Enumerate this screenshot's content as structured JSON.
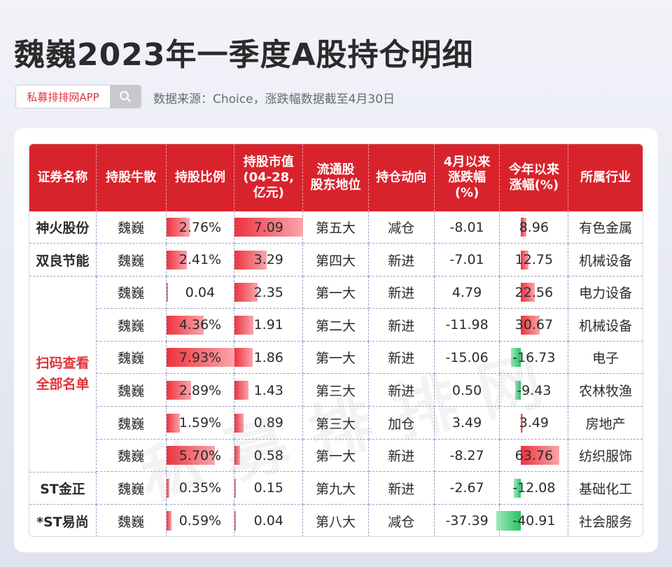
{
  "title": "魏巍2023年一季度A股持仓明细",
  "search": {
    "label": "私募排排网APP"
  },
  "source": "数据来源：Choice，涨跌幅数据截至4月30日",
  "watermark": "私募排排网",
  "headers": [
    "证券名称",
    "持股牛散",
    "持股比例",
    "持股市值\n(04-28,\n亿元)",
    "流通股\n股东地位",
    "持仓动向",
    "4月以来\n涨跌幅\n(%)",
    "今年以来\n涨幅(%)",
    "所属行业"
  ],
  "merged_label": "扫码查看\n全部名单",
  "rows": [
    {
      "name": "神火股份",
      "holder": "魏巍",
      "ratio": "2.76%",
      "ratio_pct": 2.76,
      "mv": "7.09",
      "mv_val": 7.09,
      "rank": "第五大",
      "action": "减仓",
      "apr": "-8.01",
      "ytd": "8.96",
      "ytd_val": 8.96,
      "industry": "有色金属"
    },
    {
      "name": "双良节能",
      "holder": "魏巍",
      "ratio": "2.41%",
      "ratio_pct": 2.41,
      "mv": "3.29",
      "mv_val": 3.29,
      "rank": "第四大",
      "action": "新进",
      "apr": "-7.01",
      "ytd": "12.75",
      "ytd_val": 12.75,
      "industry": "机械设备"
    },
    {
      "name": "",
      "holder": "魏巍",
      "ratio": "0.04",
      "ratio_pct": 0.04,
      "mv": "2.35",
      "mv_val": 2.35,
      "rank": "第一大",
      "action": "新进",
      "apr": "4.79",
      "ytd": "22.56",
      "ytd_val": 22.56,
      "industry": "电力设备"
    },
    {
      "name": "",
      "holder": "魏巍",
      "ratio": "4.36%",
      "ratio_pct": 4.36,
      "mv": "1.91",
      "mv_val": 1.91,
      "rank": "第二大",
      "action": "新进",
      "apr": "-11.98",
      "ytd": "30.67",
      "ytd_val": 30.67,
      "industry": "机械设备"
    },
    {
      "name": "",
      "holder": "魏巍",
      "ratio": "7.93%",
      "ratio_pct": 7.93,
      "mv": "1.86",
      "mv_val": 1.86,
      "rank": "第一大",
      "action": "新进",
      "apr": "-15.06",
      "ytd": "-16.73",
      "ytd_val": -16.73,
      "industry": "电子"
    },
    {
      "name": "",
      "holder": "魏巍",
      "ratio": "2.89%",
      "ratio_pct": 2.89,
      "mv": "1.43",
      "mv_val": 1.43,
      "rank": "第三大",
      "action": "新进",
      "apr": "0.50",
      "ytd": "-9.43",
      "ytd_val": -9.43,
      "industry": "农林牧渔"
    },
    {
      "name": "",
      "holder": "魏巍",
      "ratio": "1.59%",
      "ratio_pct": 1.59,
      "mv": "0.89",
      "mv_val": 0.89,
      "rank": "第三大",
      "action": "加仓",
      "apr": "3.49",
      "ytd": "3.49",
      "ytd_val": 3.49,
      "industry": "房地产"
    },
    {
      "name": "",
      "holder": "魏巍",
      "ratio": "5.70%",
      "ratio_pct": 5.7,
      "mv": "0.58",
      "mv_val": 0.58,
      "rank": "第一大",
      "action": "新进",
      "apr": "-8.27",
      "ytd": "63.76",
      "ytd_val": 63.76,
      "industry": "纺织服饰"
    },
    {
      "name": "ST金正",
      "holder": "魏巍",
      "ratio": "0.35%",
      "ratio_pct": 0.35,
      "mv": "0.15",
      "mv_val": 0.15,
      "rank": "第九大",
      "action": "新进",
      "apr": "-2.67",
      "ytd": "-12.08",
      "ytd_val": -12.08,
      "industry": "基础化工"
    },
    {
      "name": "*ST易尚",
      "holder": "魏巍",
      "ratio": "0.59%",
      "ratio_pct": 0.59,
      "mv": "0.04",
      "mv_val": 0.04,
      "rank": "第八大",
      "action": "减仓",
      "apr": "-37.39",
      "ytd": "-40.91",
      "ytd_val": -40.91,
      "industry": "社会服务"
    }
  ],
  "colors": {
    "header_red": "#d9232c",
    "accent_red": "#e0353a",
    "bar_red": "#f0323e",
    "bar_green": "#27c468"
  }
}
